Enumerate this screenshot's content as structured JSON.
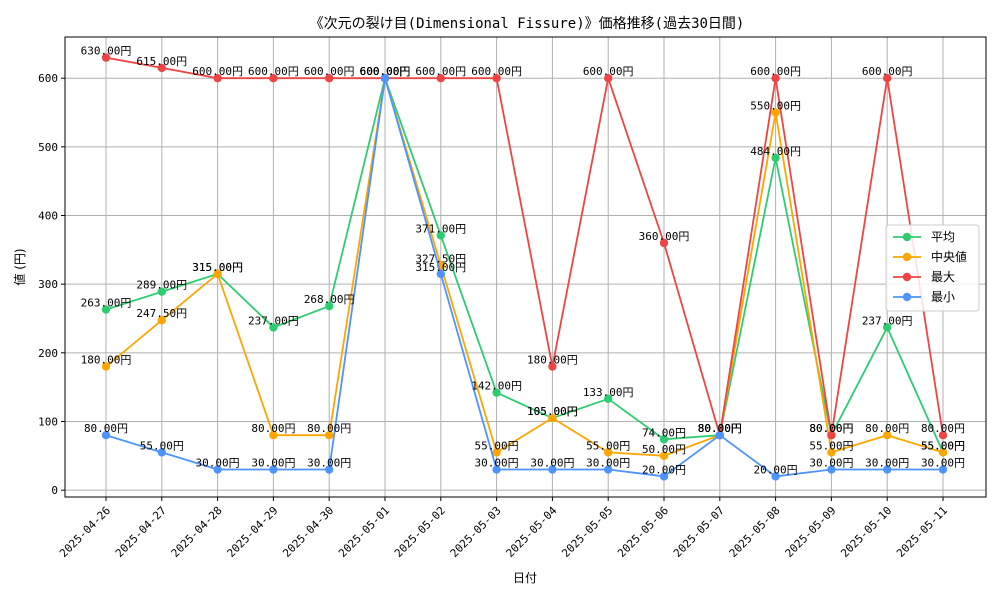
{
  "chart_data": {
    "type": "line",
    "title": "《次元の裂け目(Dimensional Fissure)》価格推移(過去30日間)",
    "xlabel": "日付",
    "ylabel": "値 (円)",
    "ylim": [
      -10,
      660
    ],
    "yticks": [
      0,
      100,
      200,
      300,
      400,
      500,
      600
    ],
    "grid": true,
    "legend_position": "right",
    "value_suffix": "円",
    "categories": [
      "2025-04-26",
      "2025-04-27",
      "2025-04-28",
      "2025-04-29",
      "2025-04-30",
      "2025-05-01",
      "2025-05-02",
      "2025-05-03",
      "2025-05-04",
      "2025-05-05",
      "2025-05-06",
      "2025-05-07",
      "2025-05-08",
      "2025-05-09",
      "2025-05-10",
      "2025-05-11"
    ],
    "series": [
      {
        "name": "平均",
        "key": "avg",
        "color": "#2ecc71",
        "values": [
          263,
          289,
          315,
          237,
          268,
          600,
          371,
          142,
          105,
          133,
          74,
          80,
          484,
          80,
          237,
          55
        ]
      },
      {
        "name": "中央値",
        "key": "median",
        "color": "#ffa500",
        "values": [
          180,
          247.5,
          315,
          80,
          80,
          600,
          327.5,
          55,
          105,
          55,
          50,
          80,
          550,
          55,
          80,
          55
        ]
      },
      {
        "name": "最大",
        "key": "max",
        "color": "#ef4444",
        "values": [
          630,
          615,
          600,
          600,
          600,
          600,
          600,
          600,
          180,
          600,
          360,
          80,
          600,
          80,
          600,
          80
        ]
      },
      {
        "name": "最小",
        "key": "min",
        "color": "#4d94ff",
        "values": [
          80,
          55,
          30,
          30,
          30,
          600,
          315,
          30,
          30,
          30,
          20,
          80,
          20,
          30,
          30,
          30
        ]
      }
    ]
  }
}
